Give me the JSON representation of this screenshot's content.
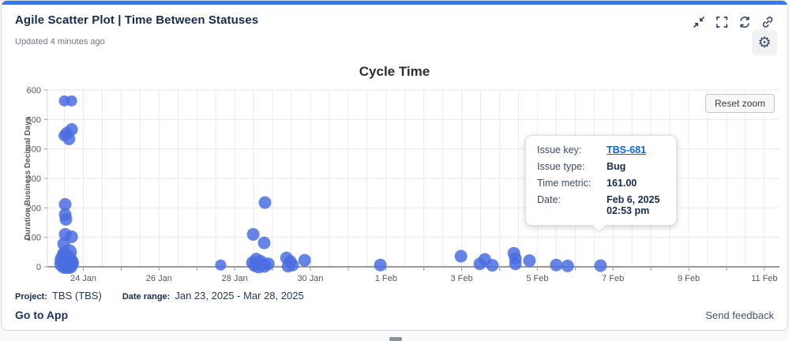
{
  "header": {
    "title": "Agile Scatter Plot | Time Between Statuses",
    "updated": "Updated 4 minutes ago"
  },
  "colors": {
    "accent_bar": "#2e7cf0",
    "point": "#4b6de2",
    "highlight_stroke": "#4d4d4d",
    "link": "#0c66e4",
    "heading": "#172b4d"
  },
  "chart_data": {
    "type": "scatter",
    "title": "Cycle Time",
    "xlabel": "",
    "ylabel": "Duration Business Decimal Days",
    "ylim": [
      0,
      600
    ],
    "y_ticks": [
      0,
      100,
      200,
      300,
      400,
      500,
      600
    ],
    "x_domain": [
      23.05,
      42.4
    ],
    "x_tick_days": [
      24,
      25,
      26,
      27,
      28,
      29,
      30,
      31,
      32,
      33,
      34,
      35,
      36,
      37,
      38,
      39,
      40,
      41,
      42
    ],
    "x_tick_labels": [
      {
        "day": 24,
        "label": "24 Jan"
      },
      {
        "day": 26,
        "label": "26 Jan"
      },
      {
        "day": 28,
        "label": "28 Jan"
      },
      {
        "day": 30,
        "label": "30 Jan"
      },
      {
        "day": 32,
        "label": "1 Feb"
      },
      {
        "day": 34,
        "label": "3 Feb"
      },
      {
        "day": 36,
        "label": "5 Feb"
      },
      {
        "day": 38,
        "label": "7 Feb"
      },
      {
        "day": 40,
        "label": "9 Feb"
      },
      {
        "day": 42,
        "label": "11 Feb"
      }
    ],
    "grid": true,
    "legend": "none",
    "point_color": "#4b6de2",
    "points": [
      [
        23.5,
        563,
        7
      ],
      [
        23.69,
        563,
        7
      ],
      [
        23.69,
        466,
        8
      ],
      [
        23.56,
        453,
        8
      ],
      [
        23.62,
        434,
        8
      ],
      [
        23.49,
        445,
        7
      ],
      [
        23.52,
        212,
        8
      ],
      [
        23.52,
        177,
        8
      ],
      [
        23.54,
        161,
        8
      ],
      [
        23.52,
        110,
        8
      ],
      [
        23.69,
        102,
        8
      ],
      [
        23.48,
        78,
        8
      ],
      [
        23.5,
        45,
        9
      ],
      [
        23.62,
        50,
        10
      ],
      [
        23.45,
        25,
        10
      ],
      [
        23.56,
        28,
        11
      ],
      [
        23.66,
        18,
        10
      ],
      [
        23.44,
        10,
        10
      ],
      [
        23.58,
        8,
        12
      ],
      [
        23.7,
        12,
        9
      ],
      [
        23.5,
        3,
        10
      ],
      [
        23.64,
        3,
        10
      ],
      [
        23.46,
        38,
        8
      ],
      [
        23.55,
        16,
        11
      ],
      [
        27.63,
        6,
        7
      ],
      [
        28.49,
        110,
        8
      ],
      [
        28.8,
        218,
        8
      ],
      [
        28.78,
        81,
        8
      ],
      [
        28.47,
        14,
        8
      ],
      [
        28.57,
        26,
        8
      ],
      [
        28.68,
        16,
        9
      ],
      [
        28.78,
        4,
        9
      ],
      [
        28.89,
        10,
        8
      ],
      [
        28.63,
        2,
        9
      ],
      [
        28.53,
        4,
        8
      ],
      [
        29.37,
        30,
        8
      ],
      [
        29.47,
        18,
        8
      ],
      [
        29.53,
        6,
        8
      ],
      [
        29.41,
        2,
        8
      ],
      [
        29.85,
        22,
        8
      ],
      [
        31.85,
        6,
        8
      ],
      [
        33.98,
        36,
        8
      ],
      [
        34.48,
        10,
        8
      ],
      [
        34.61,
        25,
        8
      ],
      [
        34.81,
        5,
        8
      ],
      [
        35.38,
        46,
        8
      ],
      [
        35.42,
        28,
        8
      ],
      [
        35.42,
        10,
        8
      ],
      [
        35.79,
        21,
        8
      ],
      [
        36.5,
        6,
        8
      ],
      [
        36.8,
        3,
        8
      ],
      [
        37.67,
        4,
        8
      ]
    ],
    "highlighted_point": {
      "day": 37.62,
      "value": 161,
      "r": 10
    },
    "reset_zoom_label": "Reset zoom"
  },
  "tooltip": {
    "issue_key_label": "Issue key:",
    "issue_key_value": "TBS-681",
    "issue_type_label": "Issue type:",
    "issue_type_value": "Bug",
    "time_metric_label": "Time metric:",
    "time_metric_value": "161.00",
    "date_label": "Date:",
    "date_value": "Feb 6, 2025 02:53 pm"
  },
  "footer": {
    "project_label": "Project:",
    "project_value": "TBS (TBS)",
    "date_range_label": "Date range:",
    "date_range_value": "Jan 23, 2025 - Mar 28, 2025",
    "go_to_app": "Go to App",
    "send_feedback": "Send feedback"
  }
}
